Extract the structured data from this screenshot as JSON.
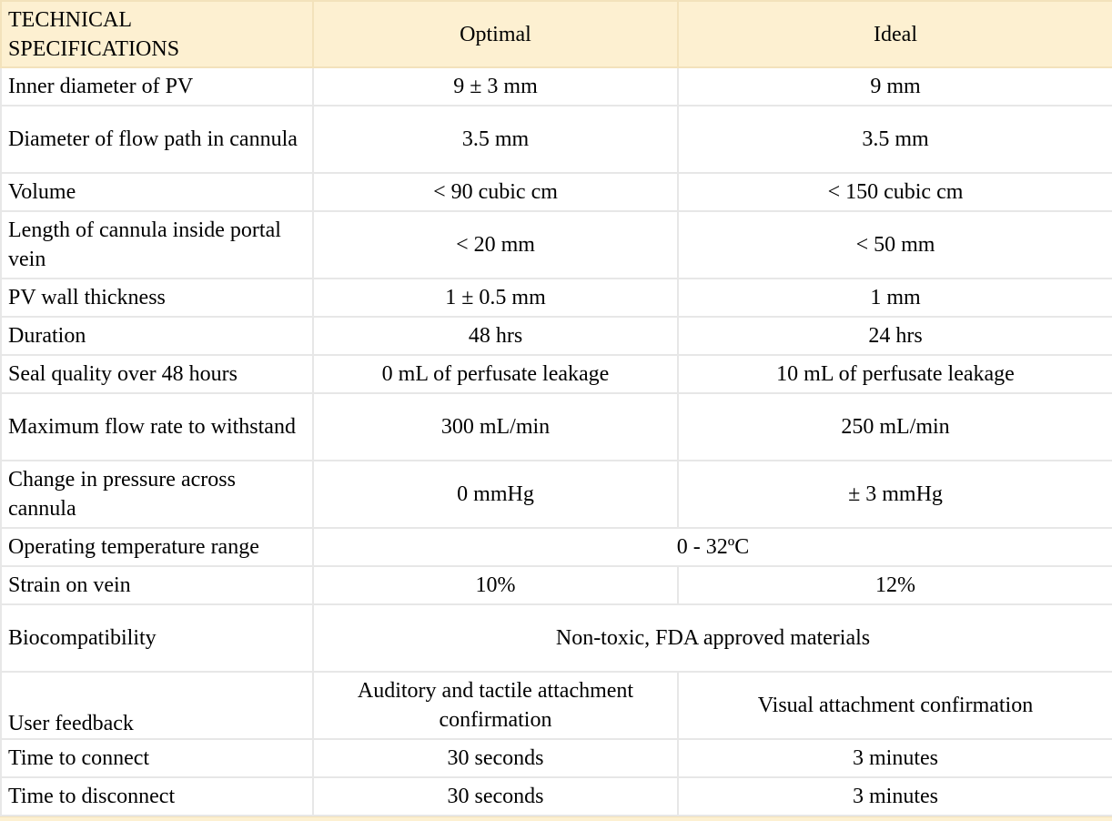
{
  "header": {
    "col1": "TECHNICAL SPECIFICATIONS",
    "col2": "Optimal",
    "col3": "Ideal"
  },
  "rows": [
    {
      "spec": "Inner diameter of PV",
      "optimal": "9 ± 3 mm",
      "ideal": "9 mm"
    },
    {
      "spec": "Diameter of flow path in cannula",
      "optimal": "3.5 mm",
      "ideal": "3.5 mm"
    },
    {
      "spec": "Volume",
      "optimal": "< 90 cubic cm",
      "ideal": "< 150 cubic cm"
    },
    {
      "spec": "Length of cannula inside portal vein",
      "optimal": "< 20 mm",
      "ideal": "< 50 mm"
    },
    {
      "spec": "PV wall thickness",
      "optimal": "1 ± 0.5 mm",
      "ideal": "1 mm"
    },
    {
      "spec": "Duration",
      "optimal": "48 hrs",
      "ideal": "24 hrs"
    },
    {
      "spec": "Seal quality over 48 hours",
      "optimal": "0 mL of perfusate leakage",
      "ideal": "10 mL of perfusate leakage"
    },
    {
      "spec": "Maximum flow rate to withstand",
      "optimal": "300 mL/min",
      "ideal": "250 mL/min"
    },
    {
      "spec": "Change in pressure across cannula",
      "optimal": "0 mmHg",
      "ideal": "± 3 mmHg"
    },
    {
      "spec": "Operating temperature range",
      "merged": "0 - 32ºC"
    },
    {
      "spec": "Strain on vein",
      "optimal": "10%",
      "ideal": "12%"
    },
    {
      "spec": "Biocompatibility",
      "merged": "Non-toxic, FDA approved materials"
    },
    {
      "spec": "User feedback",
      "optimal": "Auditory and tactile attachment confirmation",
      "ideal": "Visual attachment confirmation"
    },
    {
      "spec": "Time to connect",
      "optimal": "30 seconds",
      "ideal": "3 minutes"
    },
    {
      "spec": "Time to disconnect",
      "optimal": "30 seconds",
      "ideal": "3 minutes"
    }
  ]
}
